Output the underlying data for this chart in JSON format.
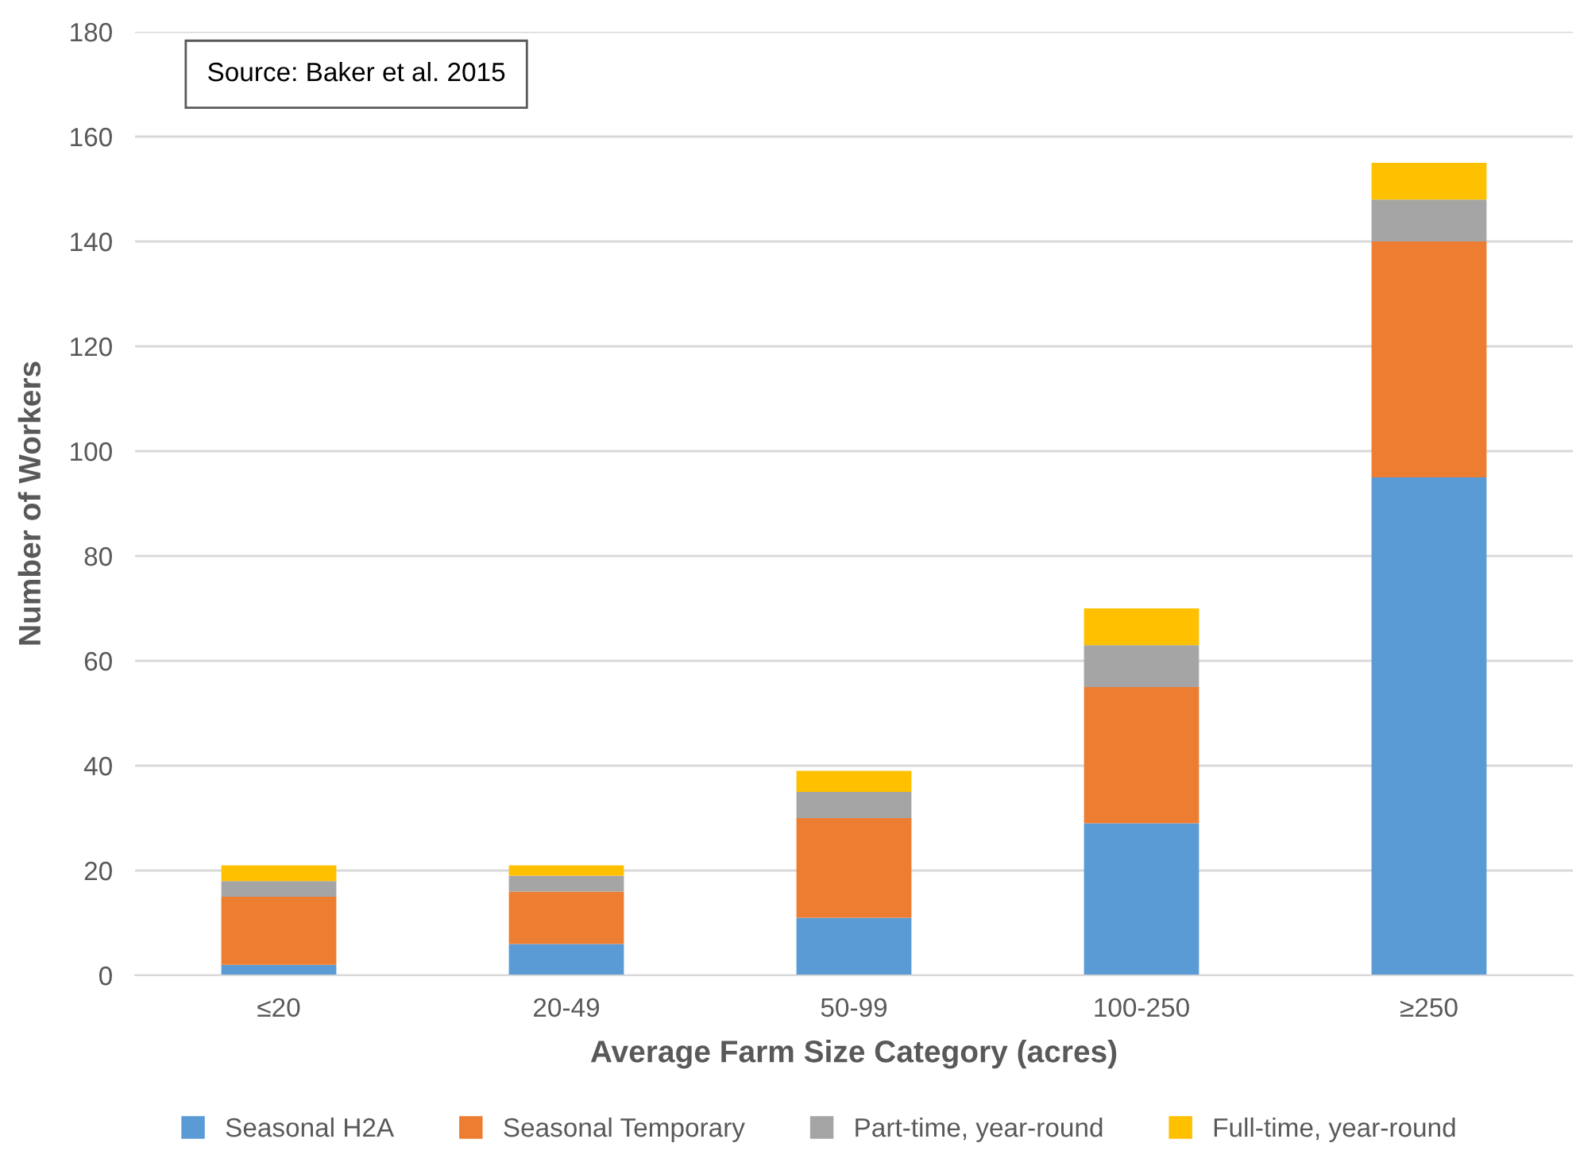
{
  "chart_data": {
    "type": "bar",
    "stacked": true,
    "xlabel": "Average Farm Size Category (acres)",
    "ylabel": "Number of Workers",
    "categories": [
      "≤20",
      "20-49",
      "50-99",
      "100-250",
      "≥250"
    ],
    "series": [
      {
        "name": "Seasonal H2A",
        "color": "#5b9bd5",
        "values": [
          2,
          6,
          11,
          29,
          95
        ]
      },
      {
        "name": "Seasonal Temporary",
        "color": "#ed7d31",
        "values": [
          13,
          10,
          19,
          26,
          45
        ]
      },
      {
        "name": "Part-time, year-round",
        "color": "#a5a5a5",
        "values": [
          3,
          3,
          5,
          8,
          8
        ]
      },
      {
        "name": "Full-time, year-round",
        "color": "#ffc000",
        "values": [
          3,
          2,
          4,
          7,
          7
        ]
      }
    ],
    "ylim": [
      0,
      180
    ],
    "yticks": [
      0,
      20,
      40,
      60,
      80,
      100,
      120,
      140,
      160,
      180
    ],
    "grid": "y",
    "legend": "bottom",
    "annotations": [
      "Source: Baker et al. 2015"
    ]
  }
}
